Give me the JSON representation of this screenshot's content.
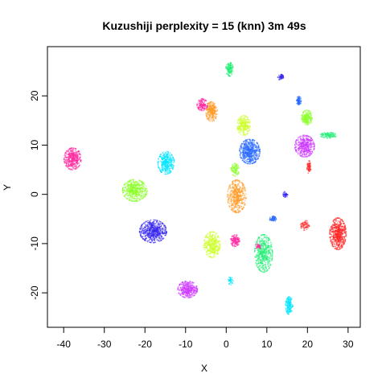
{
  "chart_data": {
    "type": "scatter",
    "title": "Kuzushiji perplexity = 15 (knn) 3m 49s",
    "xlabel": "X",
    "ylabel": "Y",
    "xlim": [
      -44,
      33
    ],
    "ylim": [
      -27,
      30
    ],
    "xticks": [
      -40,
      -30,
      -20,
      -10,
      0,
      10,
      20,
      30
    ],
    "yticks": [
      -20,
      -10,
      0,
      10,
      20
    ],
    "grid": false,
    "legend": "none",
    "clusters": [
      {
        "color": "#ff2aa0",
        "cx": -37.8,
        "cy": 7.2,
        "rx": 2.1,
        "ry": 2.2,
        "n": 420
      },
      {
        "color": "#00e5ff",
        "cx": -14.8,
        "cy": 6.4,
        "rx": 2.0,
        "ry": 2.3,
        "n": 380
      },
      {
        "color": "#88ff22",
        "cx": -22.5,
        "cy": 0.8,
        "rx": 3.0,
        "ry": 2.2,
        "n": 480
      },
      {
        "color": "#3322ee",
        "cx": -18.0,
        "cy": -7.5,
        "rx": 3.3,
        "ry": 2.3,
        "n": 560
      },
      {
        "color": "#cc33ff",
        "cx": -9.5,
        "cy": -19.3,
        "rx": 2.4,
        "ry": 1.7,
        "n": 340
      },
      {
        "color": "#ccff22",
        "cx": -3.5,
        "cy": -10.2,
        "rx": 2.0,
        "ry": 2.6,
        "n": 380
      },
      {
        "color": "#ff2aa0",
        "cx": 2.2,
        "cy": -9.4,
        "rx": 1.1,
        "ry": 1.2,
        "n": 150
      },
      {
        "color": "#ff9922",
        "cx": -3.6,
        "cy": 16.8,
        "rx": 1.4,
        "ry": 2.0,
        "n": 260
      },
      {
        "color": "#ff2aa0",
        "cx": -5.9,
        "cy": 18.2,
        "rx": 1.3,
        "ry": 1.2,
        "n": 150
      },
      {
        "color": "#22ee77",
        "cx": 0.8,
        "cy": 25.4,
        "rx": 0.9,
        "ry": 1.4,
        "n": 150
      },
      {
        "color": "#ccff22",
        "cx": 4.3,
        "cy": 14.0,
        "rx": 1.6,
        "ry": 2.0,
        "n": 260
      },
      {
        "color": "#2266ff",
        "cx": 5.8,
        "cy": 8.7,
        "rx": 2.5,
        "ry": 2.5,
        "n": 520
      },
      {
        "color": "#ff9922",
        "cx": 2.6,
        "cy": -0.4,
        "rx": 2.3,
        "ry": 3.3,
        "n": 460
      },
      {
        "color": "#88ff22",
        "cx": 2.2,
        "cy": 5.0,
        "rx": 1.0,
        "ry": 1.3,
        "n": 100
      },
      {
        "color": "#22ee77",
        "cx": 9.2,
        "cy": -12.0,
        "rx": 2.2,
        "ry": 3.8,
        "n": 520
      },
      {
        "color": "#00e5ff",
        "cx": 15.5,
        "cy": -22.6,
        "rx": 0.9,
        "ry": 1.8,
        "n": 180
      },
      {
        "color": "#ff2222",
        "cx": 27.5,
        "cy": -8.0,
        "rx": 2.0,
        "ry": 3.2,
        "n": 540
      },
      {
        "color": "#cc33ff",
        "cx": 19.3,
        "cy": 9.8,
        "rx": 2.4,
        "ry": 2.2,
        "n": 400
      },
      {
        "color": "#88ff22",
        "cx": 19.9,
        "cy": 15.6,
        "rx": 1.3,
        "ry": 1.5,
        "n": 200
      },
      {
        "color": "#2266ff",
        "cx": 17.9,
        "cy": 19.0,
        "rx": 0.6,
        "ry": 0.9,
        "n": 80
      },
      {
        "color": "#22ee77",
        "cx": 25.2,
        "cy": 12.0,
        "rx": 2.0,
        "ry": 0.6,
        "n": 120
      },
      {
        "color": "#ff2222",
        "cx": 20.4,
        "cy": 5.5,
        "rx": 0.5,
        "ry": 1.3,
        "n": 70
      },
      {
        "color": "#3322ee",
        "cx": 13.4,
        "cy": 23.8,
        "rx": 0.7,
        "ry": 0.6,
        "n": 50
      },
      {
        "color": "#2266ff",
        "cx": 11.5,
        "cy": -5.0,
        "rx": 0.8,
        "ry": 0.6,
        "n": 60
      },
      {
        "color": "#3322ee",
        "cx": 14.6,
        "cy": 0.0,
        "rx": 0.6,
        "ry": 0.6,
        "n": 40
      },
      {
        "color": "#ff2222",
        "cx": 19.4,
        "cy": -6.3,
        "rx": 1.1,
        "ry": 1.0,
        "n": 70
      },
      {
        "color": "#ff2aa0",
        "cx": 7.9,
        "cy": -10.5,
        "rx": 0.8,
        "ry": 0.6,
        "n": 40
      },
      {
        "color": "#00e5ff",
        "cx": 1.1,
        "cy": -17.5,
        "rx": 0.6,
        "ry": 0.9,
        "n": 40
      }
    ]
  }
}
